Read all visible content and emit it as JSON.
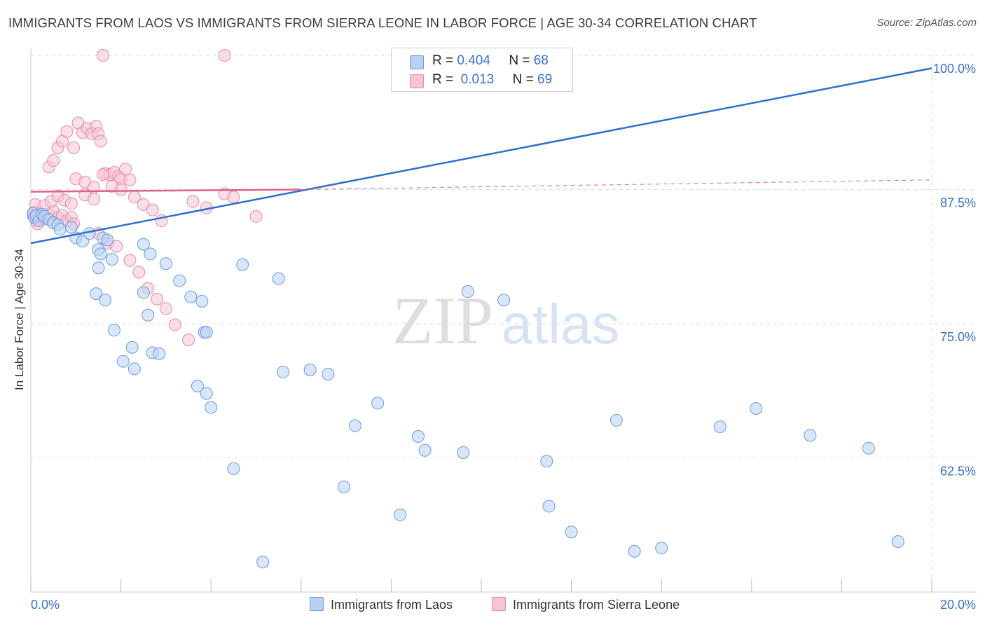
{
  "header": {
    "title": "IMMIGRANTS FROM LAOS VS IMMIGRANTS FROM SIERRA LEONE IN LABOR FORCE | AGE 30-34 CORRELATION CHART",
    "source": "Source: ZipAtlas.com"
  },
  "watermark": {
    "zip": "ZIP",
    "atlas": "atlas"
  },
  "legend": {
    "series1": {
      "r_label": "R =",
      "r_value": "0.404",
      "n_label": "N =",
      "n_value": "68"
    },
    "series2": {
      "r_label": "R =",
      "r_value": "0.013",
      "n_label": "N =",
      "n_value": "69"
    }
  },
  "colors": {
    "blue_fill": "#b8d1f3",
    "blue_stroke": "#6b9be0",
    "blue_line": "#2d6fce",
    "pink_fill": "#f6c5d5",
    "pink_stroke": "#e78aa8",
    "pink_line": "#e0608c",
    "tick_label": "#3a6fd0",
    "grid": "#dddddd"
  },
  "chart_data": {
    "type": "scatter",
    "title": "IMMIGRANTS FROM LAOS VS IMMIGRANTS FROM SIERRA LEONE IN LABOR FORCE | AGE 30-34 CORRELATION CHART",
    "xlabel": "",
    "ylabel": "In Labor Force | Age 30-34",
    "xlim": [
      0,
      20
    ],
    "ylim": [
      50,
      100
    ],
    "x_tick_labels": [
      "0.0%",
      "20.0%"
    ],
    "y_ticks": [
      62.5,
      75.0,
      87.5,
      100.0
    ],
    "y_tick_labels": [
      "62.5%",
      "75.0%",
      "87.5%",
      "100.0%"
    ],
    "grid": true,
    "legend_position": "top-center",
    "series": [
      {
        "name": "Immigrants from Laos",
        "color": "blue",
        "r": 0.404,
        "n": 68,
        "trend": {
          "x": [
            0,
            20
          ],
          "y": [
            82.5,
            98.8
          ],
          "style": "solid"
        },
        "points": [
          [
            0.05,
            85.3
          ],
          [
            0.08,
            84.9
          ],
          [
            0.12,
            85.1
          ],
          [
            0.18,
            84.6
          ],
          [
            0.25,
            85.2
          ],
          [
            0.3,
            85.0
          ],
          [
            0.4,
            84.7
          ],
          [
            0.5,
            84.4
          ],
          [
            0.6,
            84.2
          ],
          [
            0.65,
            83.8
          ],
          [
            0.9,
            84.0
          ],
          [
            1.0,
            83.0
          ],
          [
            1.15,
            82.7
          ],
          [
            1.3,
            83.4
          ],
          [
            1.5,
            81.9
          ],
          [
            1.55,
            81.5
          ],
          [
            1.5,
            80.2
          ],
          [
            1.6,
            83.0
          ],
          [
            1.7,
            82.8
          ],
          [
            1.8,
            81.0
          ],
          [
            1.45,
            77.8
          ],
          [
            1.65,
            77.2
          ],
          [
            1.85,
            74.4
          ],
          [
            2.25,
            72.8
          ],
          [
            2.05,
            71.5
          ],
          [
            2.3,
            70.8
          ],
          [
            2.5,
            77.9
          ],
          [
            2.6,
            75.8
          ],
          [
            2.7,
            72.3
          ],
          [
            2.85,
            72.2
          ],
          [
            2.5,
            82.4
          ],
          [
            2.65,
            81.5
          ],
          [
            3.0,
            80.6
          ],
          [
            3.3,
            79.0
          ],
          [
            3.55,
            77.5
          ],
          [
            3.8,
            77.1
          ],
          [
            4.7,
            80.5
          ],
          [
            5.5,
            79.2
          ],
          [
            3.85,
            74.2
          ],
          [
            3.9,
            74.2
          ],
          [
            3.7,
            69.2
          ],
          [
            3.9,
            68.5
          ],
          [
            4.0,
            67.2
          ],
          [
            4.5,
            61.5
          ],
          [
            5.6,
            70.5
          ],
          [
            6.2,
            70.7
          ],
          [
            6.6,
            70.3
          ],
          [
            7.2,
            65.5
          ],
          [
            7.7,
            67.6
          ],
          [
            8.6,
            64.5
          ],
          [
            8.75,
            63.2
          ],
          [
            9.6,
            63.0
          ],
          [
            11.45,
            62.2
          ],
          [
            11.5,
            58.0
          ],
          [
            12.0,
            55.6
          ],
          [
            13.4,
            53.8
          ],
          [
            14.0,
            54.1
          ],
          [
            15.3,
            65.4
          ],
          [
            16.1,
            67.1
          ],
          [
            17.3,
            64.6
          ],
          [
            18.6,
            63.4
          ],
          [
            19.25,
            54.7
          ],
          [
            13.0,
            66.0
          ],
          [
            5.15,
            52.8
          ],
          [
            6.95,
            59.8
          ],
          [
            9.7,
            78.0
          ],
          [
            10.5,
            77.2
          ],
          [
            8.2,
            57.2
          ]
        ]
      },
      {
        "name": "Immigrants from Sierra Leone",
        "color": "pink",
        "r": 0.013,
        "n": 69,
        "trend": {
          "x": [
            0,
            6
          ],
          "y": [
            87.3,
            87.5
          ],
          "style": "solid",
          "dashed_extension": {
            "x": [
              6,
              20
            ],
            "y": [
              87.5,
              88.4
            ]
          }
        },
        "points": [
          [
            0.05,
            85.1
          ],
          [
            0.08,
            85.4
          ],
          [
            0.12,
            84.6
          ],
          [
            0.15,
            84.3
          ],
          [
            0.2,
            85.3
          ],
          [
            0.25,
            85.0
          ],
          [
            0.3,
            84.8
          ],
          [
            0.4,
            85.2
          ],
          [
            0.5,
            85.5
          ],
          [
            0.6,
            84.9
          ],
          [
            0.7,
            85.1
          ],
          [
            0.8,
            84.6
          ],
          [
            0.9,
            84.9
          ],
          [
            0.95,
            84.3
          ],
          [
            0.1,
            86.1
          ],
          [
            0.3,
            86.0
          ],
          [
            0.45,
            86.4
          ],
          [
            0.6,
            86.9
          ],
          [
            0.75,
            86.5
          ],
          [
            0.9,
            86.2
          ],
          [
            0.4,
            89.6
          ],
          [
            0.5,
            90.2
          ],
          [
            0.6,
            91.4
          ],
          [
            0.7,
            92.0
          ],
          [
            0.8,
            92.9
          ],
          [
            0.95,
            91.4
          ],
          [
            1.05,
            93.7
          ],
          [
            1.15,
            92.8
          ],
          [
            1.25,
            93.2
          ],
          [
            1.35,
            92.7
          ],
          [
            1.45,
            93.4
          ],
          [
            1.5,
            92.7
          ],
          [
            1.55,
            92.0
          ],
          [
            1.65,
            89.0
          ],
          [
            1.75,
            88.9
          ],
          [
            1.85,
            89.1
          ],
          [
            1.95,
            88.7
          ],
          [
            2.0,
            88.5
          ],
          [
            2.1,
            89.4
          ],
          [
            2.2,
            88.4
          ],
          [
            1.0,
            88.5
          ],
          [
            1.2,
            88.2
          ],
          [
            1.4,
            87.7
          ],
          [
            1.6,
            88.9
          ],
          [
            1.8,
            87.8
          ],
          [
            2.0,
            87.5
          ],
          [
            2.3,
            86.8
          ],
          [
            2.5,
            86.1
          ],
          [
            2.7,
            85.6
          ],
          [
            2.9,
            84.6
          ],
          [
            1.5,
            83.4
          ],
          [
            1.7,
            82.5
          ],
          [
            1.9,
            82.2
          ],
          [
            2.2,
            80.9
          ],
          [
            2.4,
            79.8
          ],
          [
            2.6,
            78.3
          ],
          [
            2.8,
            77.3
          ],
          [
            3.0,
            76.4
          ],
          [
            3.2,
            74.9
          ],
          [
            3.5,
            73.5
          ],
          [
            1.2,
            87.0
          ],
          [
            1.4,
            86.6
          ],
          [
            3.6,
            86.4
          ],
          [
            3.9,
            85.8
          ],
          [
            4.3,
            87.1
          ],
          [
            4.5,
            86.8
          ],
          [
            5.0,
            85.0
          ],
          [
            1.6,
            100.0
          ],
          [
            4.3,
            100.0
          ]
        ]
      }
    ]
  },
  "bottom_legend": {
    "series1_label": "Immigrants from Laos",
    "series2_label": "Immigrants from Sierra Leone"
  },
  "x_axis": {
    "min_label": "0.0%",
    "max_label": "20.0%"
  }
}
